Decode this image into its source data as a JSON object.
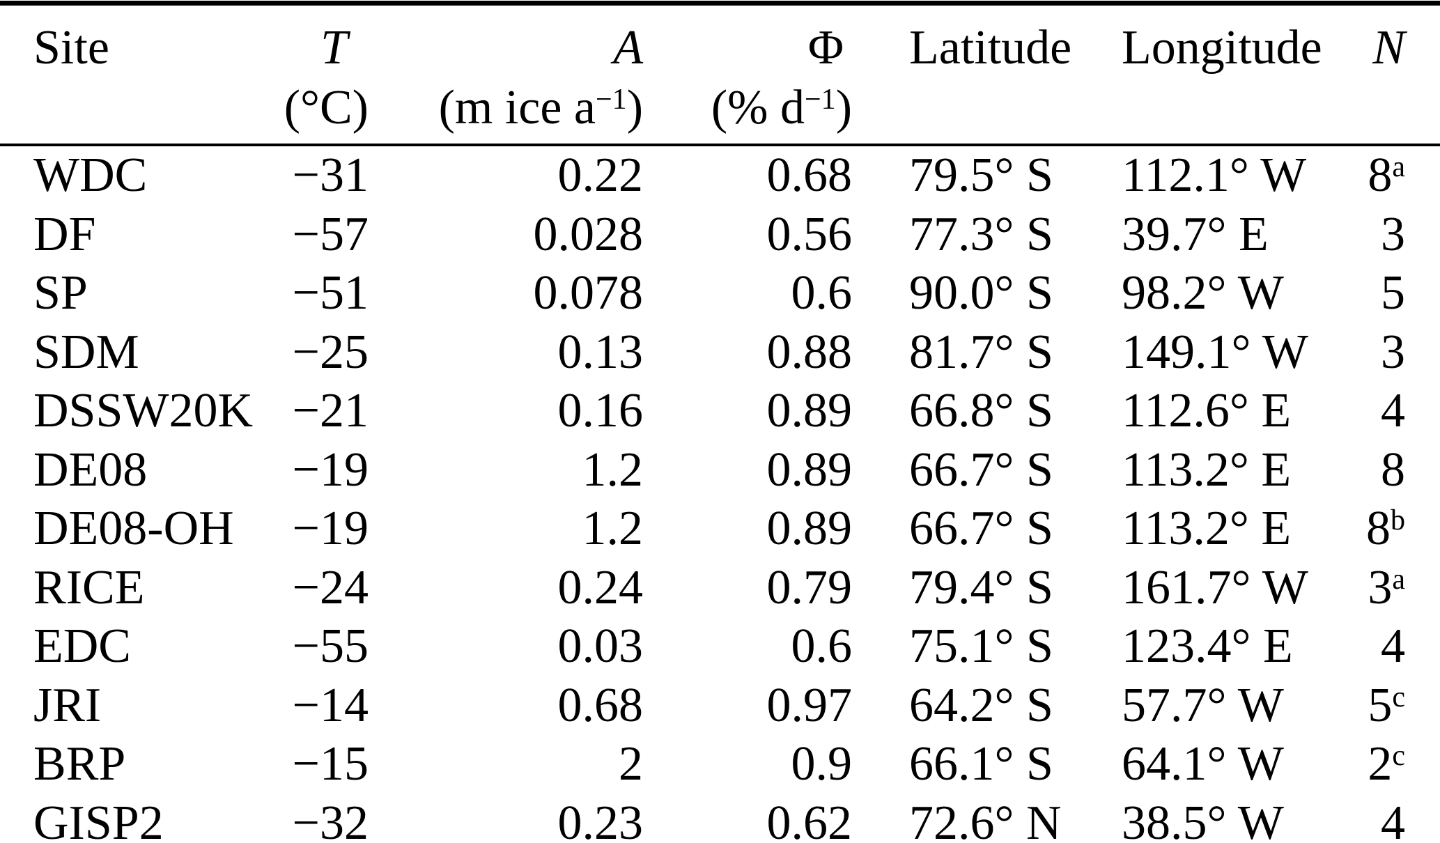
{
  "table": {
    "columns": [
      {
        "key": "site",
        "label": "Site",
        "unit_pre": "",
        "unit_sup": "",
        "unit_post": ""
      },
      {
        "key": "t",
        "label": "T",
        "unit_pre": "(°C)",
        "unit_sup": "",
        "unit_post": ""
      },
      {
        "key": "a",
        "label": "A",
        "unit_pre": "(m ice a",
        "unit_sup": "−1",
        "unit_post": ")"
      },
      {
        "key": "phi",
        "label": "Φ",
        "unit_pre": "(% d",
        "unit_sup": "−1",
        "unit_post": ")"
      },
      {
        "key": "lat",
        "label": "Latitude",
        "unit_pre": "",
        "unit_sup": "",
        "unit_post": ""
      },
      {
        "key": "lon",
        "label": "Longitude",
        "unit_pre": "",
        "unit_sup": "",
        "unit_post": ""
      },
      {
        "key": "n",
        "label": "N",
        "unit_pre": "",
        "unit_sup": "",
        "unit_post": ""
      }
    ],
    "rows": [
      {
        "site": "WDC",
        "t": "−31",
        "a": "0.22",
        "phi": "0.68",
        "lat": "79.5° S",
        "lon": "112.1° W",
        "n": "8",
        "n_sup": "a"
      },
      {
        "site": "DF",
        "t": "−57",
        "a": "0.028",
        "phi": "0.56",
        "lat": "77.3° S",
        "lon": "39.7° E",
        "n": "3",
        "n_sup": ""
      },
      {
        "site": "SP",
        "t": "−51",
        "a": "0.078",
        "phi": "0.6",
        "lat": "90.0° S",
        "lon": "98.2° W",
        "n": "5",
        "n_sup": ""
      },
      {
        "site": "SDM",
        "t": "−25",
        "a": "0.13",
        "phi": "0.88",
        "lat": "81.7° S",
        "lon": "149.1° W",
        "n": "3",
        "n_sup": ""
      },
      {
        "site": "DSSW20K",
        "t": "−21",
        "a": "0.16",
        "phi": "0.89",
        "lat": "66.8° S",
        "lon": "112.6° E",
        "n": "4",
        "n_sup": ""
      },
      {
        "site": "DE08",
        "t": "−19",
        "a": "1.2",
        "phi": "0.89",
        "lat": "66.7° S",
        "lon": "113.2° E",
        "n": "8",
        "n_sup": ""
      },
      {
        "site": "DE08-OH",
        "t": "−19",
        "a": "1.2",
        "phi": "0.89",
        "lat": "66.7° S",
        "lon": "113.2° E",
        "n": "8",
        "n_sup": "b"
      },
      {
        "site": "RICE",
        "t": "−24",
        "a": "0.24",
        "phi": "0.79",
        "lat": "79.4° S",
        "lon": "161.7° W",
        "n": "3",
        "n_sup": "a"
      },
      {
        "site": "EDC",
        "t": "−55",
        "a": "0.03",
        "phi": "0.6",
        "lat": "75.1° S",
        "lon": "123.4° E",
        "n": "4",
        "n_sup": ""
      },
      {
        "site": "JRI",
        "t": "−14",
        "a": "0.68",
        "phi": "0.97",
        "lat": "64.2° S",
        "lon": "57.7° W",
        "n": "5",
        "n_sup": "c"
      },
      {
        "site": "BRP",
        "t": "−15",
        "a": "2",
        "phi": "0.9",
        "lat": "66.1° S",
        "lon": "64.1° W",
        "n": "2",
        "n_sup": "c"
      },
      {
        "site": "GISP2",
        "t": "−32",
        "a": "0.23",
        "phi": "0.62",
        "lat": "72.6° N",
        "lon": "38.5° W",
        "n": "4",
        "n_sup": ""
      }
    ]
  },
  "colors": {
    "text": "#000000",
    "background": "#ffffff",
    "rule": "#000000"
  }
}
